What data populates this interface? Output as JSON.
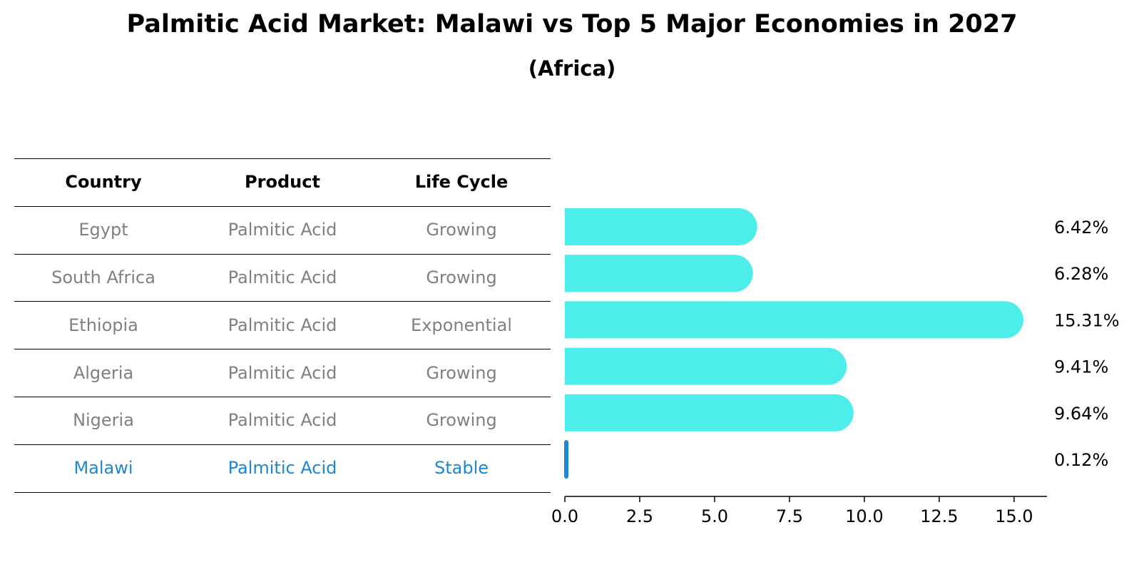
{
  "colors": {
    "bar": "#4dede9",
    "highlight": "#1f86d1",
    "muted": "#808080",
    "text": "#000000"
  },
  "table": {
    "headers": [
      "Country",
      "Product",
      "Life Cycle"
    ],
    "rows": [
      {
        "country": "Egypt",
        "product": "Palmitic Acid",
        "life_cycle": "Growing",
        "highlight": false
      },
      {
        "country": "South Africa",
        "product": "Palmitic Acid",
        "life_cycle": "Growing",
        "highlight": false
      },
      {
        "country": "Ethiopia",
        "product": "Palmitic Acid",
        "life_cycle": "Exponential",
        "highlight": false
      },
      {
        "country": "Algeria",
        "product": "Palmitic Acid",
        "life_cycle": "Growing",
        "highlight": false
      },
      {
        "country": "Nigeria",
        "product": "Palmitic Acid",
        "life_cycle": "Growing",
        "highlight": false
      },
      {
        "country": "Malawi",
        "product": "Palmitic Acid",
        "life_cycle": "Stable",
        "highlight": true
      }
    ]
  },
  "chart_data": {
    "type": "bar",
    "orientation": "horizontal",
    "title": "Palmitic Acid Market: Malawi vs Top 5 Major Economies in 2027",
    "subtitle": "(Africa)",
    "xlabel": "",
    "ylabel": "",
    "categories": [
      "Egypt",
      "South Africa",
      "Ethiopia",
      "Algeria",
      "Nigeria",
      "Malawi"
    ],
    "values": [
      6.42,
      6.28,
      15.31,
      9.41,
      9.64,
      0.12
    ],
    "value_labels": [
      "6.42%",
      "6.28%",
      "15.31%",
      "9.41%",
      "9.64%",
      "0.12%"
    ],
    "highlight_category": "Malawi",
    "xlim": [
      0,
      16.1
    ],
    "xticks": [
      0.0,
      2.5,
      5.0,
      7.5,
      10.0,
      12.5,
      15.0
    ],
    "xtick_labels": [
      "0.0",
      "2.5",
      "5.0",
      "7.5",
      "10.0",
      "12.5",
      "15.0"
    ],
    "grid": false
  }
}
